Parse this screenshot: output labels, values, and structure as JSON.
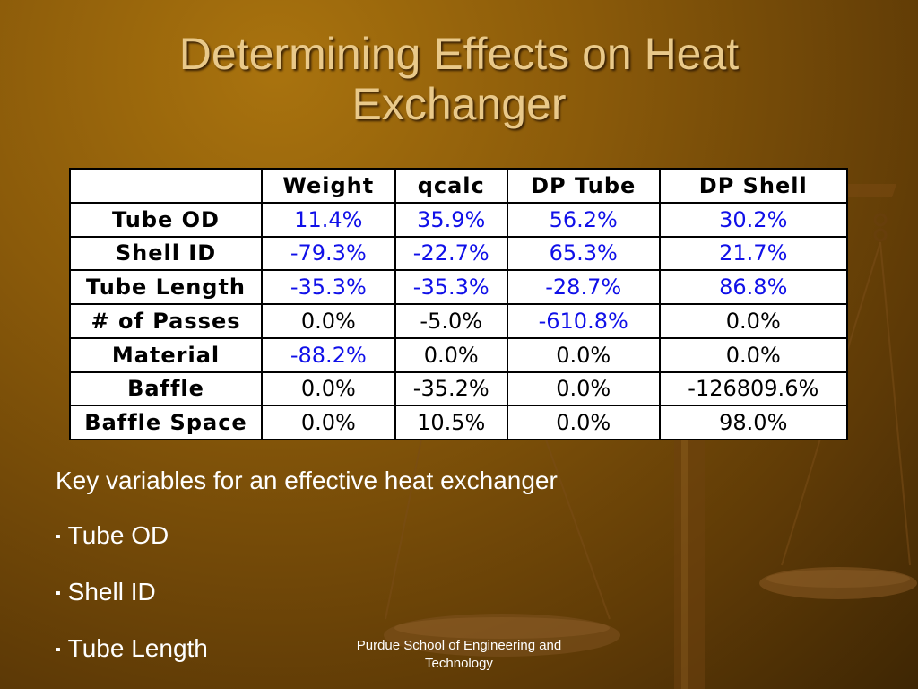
{
  "slide": {
    "title_line1": "Determining Effects on Heat",
    "title_line2": "Exchanger"
  },
  "table": {
    "headers": [
      "",
      "Weight",
      "qcalc",
      "DP Tube",
      "DP Shell"
    ],
    "rows": [
      {
        "label": "Tube OD",
        "cells": [
          "11.4%",
          "35.9%",
          "56.2%",
          "30.2%"
        ]
      },
      {
        "label": "Shell ID",
        "cells": [
          "-79.3%",
          "-22.7%",
          "65.3%",
          "21.7%"
        ]
      },
      {
        "label": "Tube Length",
        "cells": [
          "-35.3%",
          "-35.3%",
          "-28.7%",
          "86.8%"
        ]
      },
      {
        "label": "# of Passes",
        "cells": [
          "0.0%",
          "-5.0%",
          "-610.8%",
          "0.0%"
        ]
      },
      {
        "label": "Material",
        "cells": [
          "-88.2%",
          "0.0%",
          "0.0%",
          "0.0%"
        ]
      },
      {
        "label": "Baffle",
        "cells": [
          "0.0%",
          "-35.2%",
          "0.0%",
          "-126809.6%"
        ]
      },
      {
        "label": "Baffle Space",
        "cells": [
          "0.0%",
          "10.5%",
          "0.0%",
          "98.0%"
        ]
      }
    ]
  },
  "key_variables": {
    "heading": "Key variables for an effective heat exchanger",
    "items": [
      "Tube OD",
      "Shell ID",
      "Tube Length"
    ],
    "bullet": "▪"
  },
  "footer": {
    "line1": "Purdue School of Engineering and",
    "line2": "Technology"
  },
  "colors": {
    "title": "#e9c98a",
    "highlight_value": "#1010e8",
    "plain_value": "#000000",
    "text": "#ffffff"
  }
}
